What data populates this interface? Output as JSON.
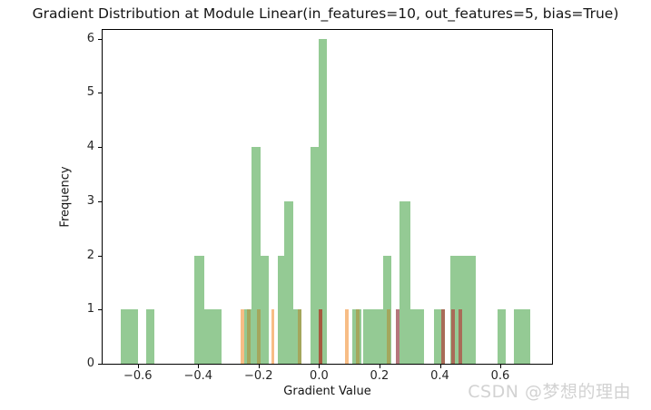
{
  "watermark": {
    "text": "CSDN @梦想的理由",
    "color": "#d2d2d2"
  },
  "chart_data": {
    "type": "bar",
    "subtype": "histogram-overlay",
    "title": "Gradient Distribution at Module Linear(in_features=10, out_features=5, bias=True)",
    "xlabel": "Gradient Value",
    "ylabel": "Frequency",
    "xlim": [
      -0.7165,
      0.7713
    ],
    "ylim": [
      0,
      6.163
    ],
    "grid": false,
    "legend": "none",
    "background": "#ffffff",
    "x_ticks": [
      {
        "value": -0.6,
        "label": "−0.6"
      },
      {
        "value": -0.4,
        "label": "−0.4"
      },
      {
        "value": -0.2,
        "label": "−0.2"
      },
      {
        "value": 0.0,
        "label": "0.0"
      },
      {
        "value": 0.2,
        "label": "0.2"
      },
      {
        "value": 0.4,
        "label": "0.4"
      },
      {
        "value": 0.6,
        "label": "0.6"
      }
    ],
    "y_ticks": [
      {
        "value": 0,
        "label": "0"
      },
      {
        "value": 1,
        "label": "1"
      },
      {
        "value": 2,
        "label": "2"
      },
      {
        "value": 3,
        "label": "3"
      },
      {
        "value": 4,
        "label": "4"
      },
      {
        "value": 5,
        "label": "5"
      },
      {
        "value": 6,
        "label": "6"
      }
    ],
    "series": [
      {
        "name": "weight-gradient-histogram",
        "color": "#94ca94",
        "bars": [
          {
            "from": -0.656,
            "to": -0.599,
            "count": 1
          },
          {
            "from": -0.572,
            "to": -0.545,
            "count": 1
          },
          {
            "from": -0.413,
            "to": -0.38,
            "count": 2
          },
          {
            "from": -0.38,
            "to": -0.323,
            "count": 1
          },
          {
            "from": -0.248,
            "to": -0.224,
            "count": 1
          },
          {
            "from": -0.224,
            "to": -0.194,
            "count": 4
          },
          {
            "from": -0.194,
            "to": -0.167,
            "count": 2
          },
          {
            "from": -0.137,
            "to": -0.116,
            "count": 2
          },
          {
            "from": -0.116,
            "to": -0.086,
            "count": 3
          },
          {
            "from": -0.086,
            "to": -0.059,
            "count": 1
          },
          {
            "from": -0.029,
            "to": -0.002,
            "count": 4
          },
          {
            "from": -0.002,
            "to": 0.026,
            "count": 6
          },
          {
            "from": 0.11,
            "to": 0.14,
            "count": 1
          },
          {
            "from": 0.146,
            "to": 0.212,
            "count": 1
          },
          {
            "from": 0.212,
            "to": 0.239,
            "count": 2
          },
          {
            "from": 0.266,
            "to": 0.302,
            "count": 3
          },
          {
            "from": 0.302,
            "to": 0.347,
            "count": 1
          },
          {
            "from": 0.38,
            "to": 0.416,
            "count": 1
          },
          {
            "from": 0.434,
            "to": 0.518,
            "count": 2
          },
          {
            "from": 0.59,
            "to": 0.617,
            "count": 1
          },
          {
            "from": 0.644,
            "to": 0.698,
            "count": 1
          }
        ]
      },
      {
        "name": "overlay-orange-histogram",
        "color": "#f7bd86",
        "bars": [
          {
            "from": -0.26,
            "to": -0.248,
            "count": 1
          },
          {
            "from": -0.158,
            "to": -0.147,
            "count": 1
          },
          {
            "from": 0.087,
            "to": 0.099,
            "count": 1
          }
        ]
      },
      {
        "name": "overlay-olive-histogram",
        "color": "#a4a75d",
        "bars": [
          {
            "from": -0.239,
            "to": -0.227,
            "count": 1
          },
          {
            "from": -0.207,
            "to": -0.195,
            "count": 1
          },
          {
            "from": -0.071,
            "to": -0.059,
            "count": 1
          },
          {
            "from": 0.122,
            "to": 0.134,
            "count": 1
          },
          {
            "from": 0.224,
            "to": 0.236,
            "count": 1
          }
        ]
      },
      {
        "name": "overlay-mauve-histogram",
        "color": "#b4777c",
        "bars": [
          {
            "from": 0.254,
            "to": 0.266,
            "count": 1
          }
        ]
      },
      {
        "name": "overlay-brown-histogram",
        "color": "#a96b58",
        "bars": [
          {
            "from": 0.404,
            "to": 0.416,
            "count": 1
          },
          {
            "from": 0.437,
            "to": 0.449,
            "count": 1
          },
          {
            "from": 0.461,
            "to": 0.473,
            "count": 1
          }
        ]
      },
      {
        "name": "overlay-darkred-histogram",
        "color": "#a5593f",
        "bars": [
          {
            "from": -0.002,
            "to": 0.011,
            "count": 1
          }
        ]
      }
    ]
  }
}
